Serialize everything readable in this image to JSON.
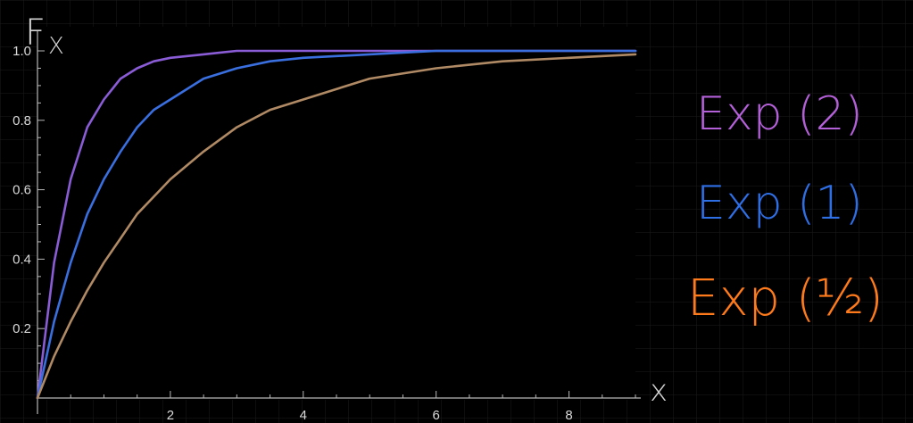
{
  "chart_data": {
    "type": "line",
    "ylabel": "F_X",
    "xlabel": "x",
    "xlim": [
      0,
      9
    ],
    "ylim": [
      0,
      1
    ],
    "x_ticks": [
      "2",
      "4",
      "6",
      "8"
    ],
    "y_ticks": [
      "0.2",
      "0.4",
      "0.6",
      "0.8",
      "1.0"
    ],
    "grid": "on",
    "legend_position": "right",
    "series": [
      {
        "name": "Exp(2)",
        "color": "#8a5cd6",
        "x": [
          0,
          0.25,
          0.5,
          0.75,
          1,
          1.25,
          1.5,
          1.75,
          2,
          2.5,
          3,
          3.5,
          4,
          5,
          6,
          7,
          8,
          9
        ],
        "values": [
          0,
          0.39,
          0.63,
          0.78,
          0.86,
          0.92,
          0.95,
          0.97,
          0.98,
          0.99,
          1.0,
          1.0,
          1.0,
          1.0,
          1.0,
          1.0,
          1.0,
          1.0
        ]
      },
      {
        "name": "Exp(1)",
        "color": "#3a6fe0",
        "x": [
          0,
          0.25,
          0.5,
          0.75,
          1,
          1.25,
          1.5,
          1.75,
          2,
          2.5,
          3,
          3.5,
          4,
          5,
          6,
          7,
          8,
          9
        ],
        "values": [
          0,
          0.22,
          0.39,
          0.53,
          0.63,
          0.71,
          0.78,
          0.83,
          0.86,
          0.92,
          0.95,
          0.97,
          0.98,
          0.99,
          1.0,
          1.0,
          1.0,
          1.0
        ]
      },
      {
        "name": "Exp(1/2)",
        "color": "#b08a64",
        "x": [
          0,
          0.25,
          0.5,
          0.75,
          1,
          1.25,
          1.5,
          1.75,
          2,
          2.5,
          3,
          3.5,
          4,
          5,
          6,
          7,
          8,
          9
        ],
        "values": [
          0,
          0.12,
          0.22,
          0.31,
          0.39,
          0.46,
          0.53,
          0.58,
          0.63,
          0.71,
          0.78,
          0.83,
          0.86,
          0.92,
          0.95,
          0.97,
          0.98,
          0.99
        ]
      }
    ]
  },
  "annotations": {
    "y_axis_label": "F",
    "y_axis_subscript": "X",
    "x_axis_label": "x",
    "legend": [
      {
        "text": "Exp (2)",
        "color": "#b460d8"
      },
      {
        "text": "Exp (1)",
        "color": "#2f6fe6"
      },
      {
        "text": "Exp (½)",
        "color": "#ff7a1a"
      }
    ]
  }
}
